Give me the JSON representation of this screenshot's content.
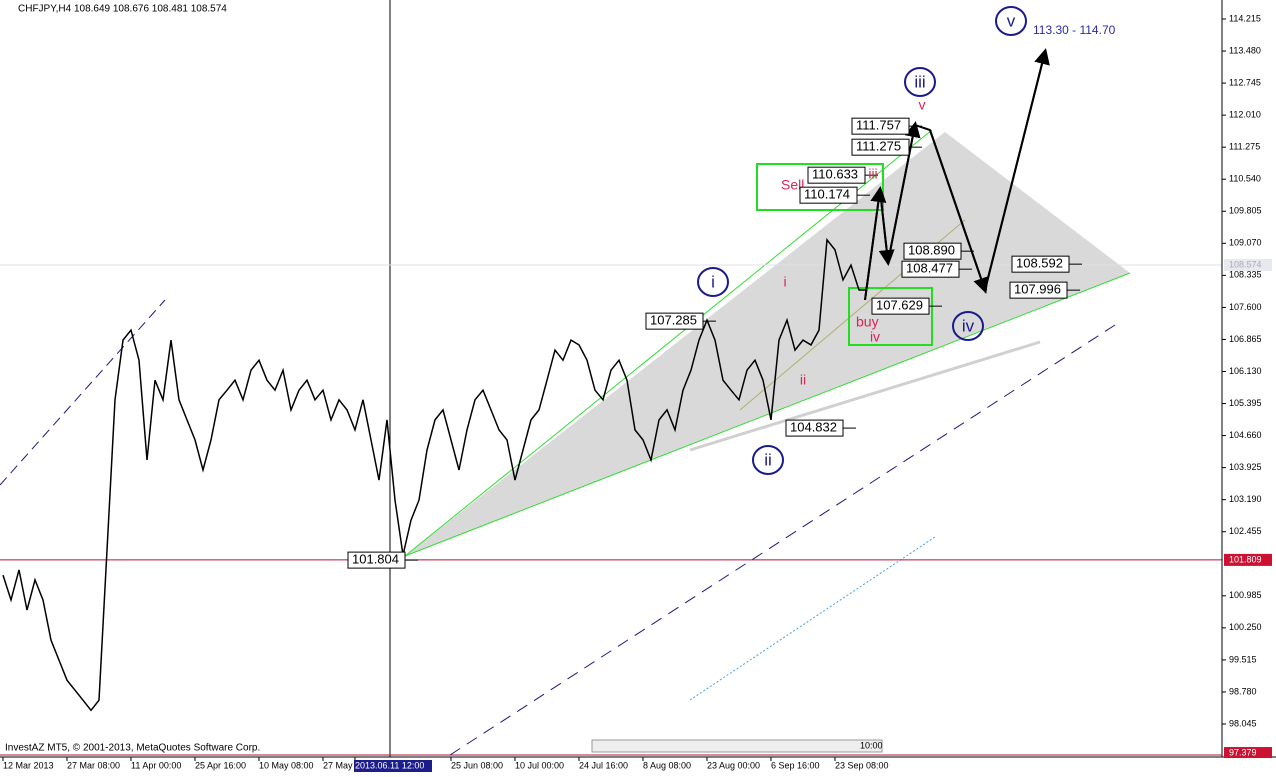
{
  "chart_data": {
    "type": "line",
    "title": "CHFJPY,H4  108.649 108.676 108.481 108.574",
    "footer": "InvestAZ MT5, © 2001-2013, MetaQuotes Software Corp.",
    "categories": [
      "12 Mar 2013",
      null,
      null,
      null,
      null,
      null,
      null,
      null,
      "27 Mar 08:00",
      null,
      null,
      null,
      null,
      null,
      null,
      null,
      "11 Apr 00:00",
      null,
      null,
      null,
      null,
      null,
      null,
      null,
      "25 Apr 16:00",
      null,
      null,
      null,
      null,
      null,
      null,
      null,
      "10 May 08:00",
      null,
      null,
      null,
      null,
      null,
      null,
      null,
      "27 May",
      null,
      null,
      null,
      "2013.06.11 12:00",
      null,
      null,
      null,
      null,
      null,
      null,
      null,
      null,
      null,
      null,
      null,
      "25 Jun 08:00",
      null,
      null,
      null,
      null,
      null,
      null,
      null,
      "10 Jul 00:00",
      null,
      null,
      null,
      null,
      null,
      null,
      null,
      "24 Jul 16:00",
      null,
      null,
      null,
      null,
      null,
      null,
      null,
      "8 Aug 08:00",
      null,
      null,
      null,
      null,
      null,
      null,
      null,
      "23 Aug 00:00",
      null,
      null,
      null,
      null,
      null,
      null,
      null,
      "6 Sep 16:00",
      null,
      null,
      null,
      null,
      null,
      null,
      null,
      "23 Sep 08:00",
      null,
      null,
      null,
      null
    ],
    "series": [
      {
        "name": "CHFJPY",
        "color": "#000000",
        "values": [
          101.46,
          100.89,
          101.58,
          100.66,
          101.35,
          100.89,
          99.97,
          99.51,
          99.05,
          98.82,
          98.59,
          98.36,
          98.59,
          102.03,
          105.48,
          106.85,
          107.08,
          106.39,
          104.1,
          105.93,
          105.48,
          106.85,
          105.48,
          105.02,
          104.56,
          103.87,
          104.56,
          105.48,
          105.7,
          105.93,
          105.48,
          106.16,
          106.39,
          105.93,
          105.7,
          106.16,
          105.25,
          105.7,
          105.93,
          105.48,
          105.7,
          105.02,
          105.48,
          105.25,
          104.79,
          105.48,
          104.56,
          103.64,
          105.02,
          103.18,
          101.92,
          102.72,
          103.18,
          104.33,
          105.02,
          105.25,
          104.56,
          103.87,
          104.79,
          105.48,
          105.7,
          105.25,
          104.79,
          104.56,
          103.64,
          104.33,
          105.02,
          105.25,
          105.93,
          106.62,
          106.39,
          106.85,
          106.74,
          106.39,
          105.7,
          105.48,
          106.16,
          106.39,
          105.93,
          104.79,
          104.56,
          104.1,
          105.02,
          105.25,
          104.79,
          105.7,
          106.16,
          106.85,
          107.31,
          106.85,
          105.93,
          105.7,
          105.48,
          106.16,
          106.39,
          105.93,
          105.02,
          106.85,
          107.31,
          106.62,
          106.85,
          106.74,
          107.08,
          109.15,
          108.92,
          108.23,
          108.57,
          108.0,
          108.0
        ]
      }
    ],
    "ylim": [
      97.334,
      114.536
    ],
    "yticks": [
      114.215,
      {
        "value": 113.48,
        "label": "113.480"
      },
      112.745,
      {
        "value": 112.01,
        "label": "112.010"
      },
      111.275,
      {
        "value": 110.54,
        "label": "110.540"
      },
      109.805,
      {
        "value": 109.07,
        "label": "109.070"
      },
      108.335,
      {
        "value": 107.6,
        "label": "107.600"
      },
      106.865,
      {
        "value": 106.13,
        "label": "106.130"
      },
      105.395,
      {
        "value": 104.66,
        "label": "104.660"
      },
      103.925,
      {
        "value": 103.19,
        "label": "103.190"
      },
      102.455,
      100.985,
      {
        "value": 100.25,
        "label": "100.250"
      },
      99.515,
      {
        "value": 98.78,
        "label": "98.780"
      },
      98.045
    ],
    "bid_line": 101.809,
    "current_price": 108.574,
    "bottom_price": 97.379,
    "price_labels": [
      101.804,
      107.285,
      104.832,
      110.633,
      110.174,
      111.757,
      111.275,
      {
        "value": 108.89,
        "label": "108.890"
      },
      108.477,
      107.629,
      108.592,
      107.996
    ],
    "major_waves": [
      "i",
      "ii",
      "iii",
      "iv",
      "v"
    ],
    "minor_waves": [
      "i",
      "ii",
      "iii",
      "iv",
      "v"
    ],
    "sell_label": "Sell",
    "buy_label": "buy",
    "target": "113.30 - 114.70",
    "time_marker": "10:00"
  }
}
